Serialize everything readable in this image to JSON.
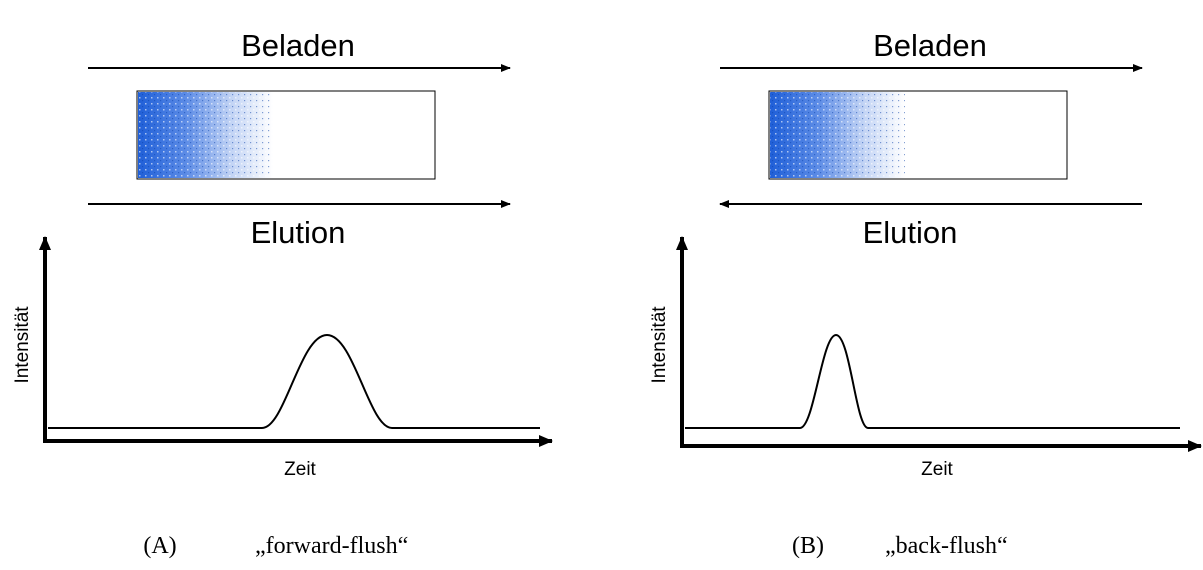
{
  "panels": [
    {
      "load_label": "Beladen",
      "elution_label": "Elution",
      "y_label": "Intensität",
      "x_label": "Zeit",
      "caption_letter": "(A)",
      "caption_text": "„forward-flush“"
    },
    {
      "load_label": "Beladen",
      "elution_label": "Elution",
      "y_label": "Intensität",
      "x_label": "Zeit",
      "caption_letter": "(B)",
      "caption_text": "„back-flush“"
    }
  ]
}
